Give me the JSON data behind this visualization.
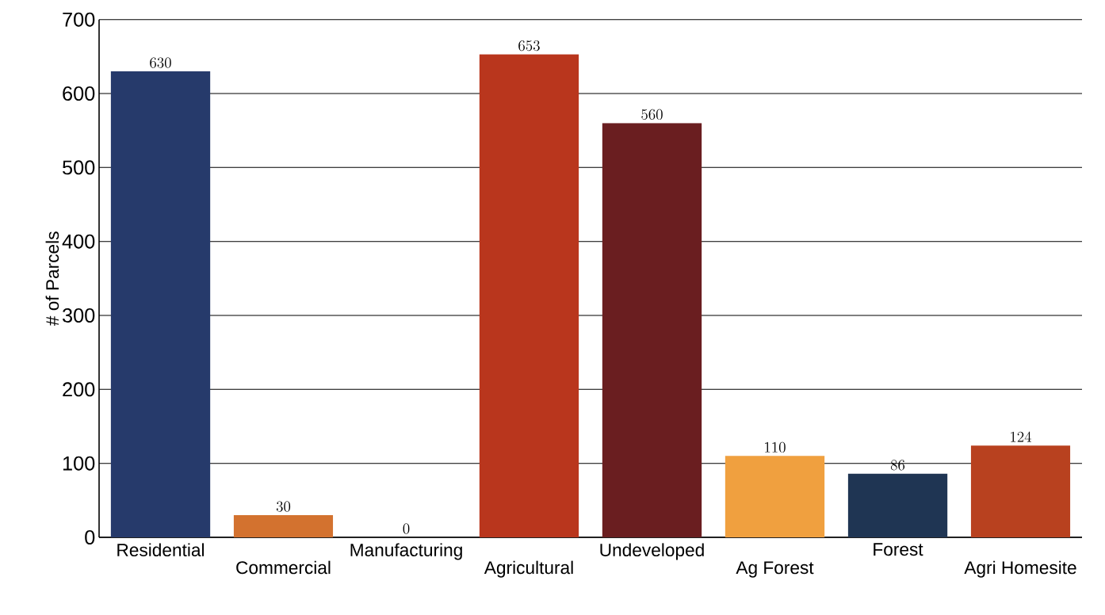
{
  "chart_data": {
    "type": "bar",
    "ylabel": "# of Parcels",
    "categories": [
      "Residential",
      "Commercial",
      "Manufacturing",
      "Agricultural",
      "Undeveloped",
      "Ag Forest",
      "Forest",
      "Agri Homesite"
    ],
    "values": [
      630,
      30,
      0,
      653,
      560,
      110,
      86,
      124
    ],
    "colors": [
      "#263a6b",
      "#d3722f",
      "#b9361d",
      "#b9361d",
      "#6a1e20",
      "#f0a03f",
      "#1f3553",
      "#b8411f"
    ],
    "ylim": [
      0,
      700
    ],
    "yticks": [
      0,
      100,
      200,
      300,
      400,
      500,
      600,
      700
    ],
    "grid": "y",
    "data_labels": true
  }
}
